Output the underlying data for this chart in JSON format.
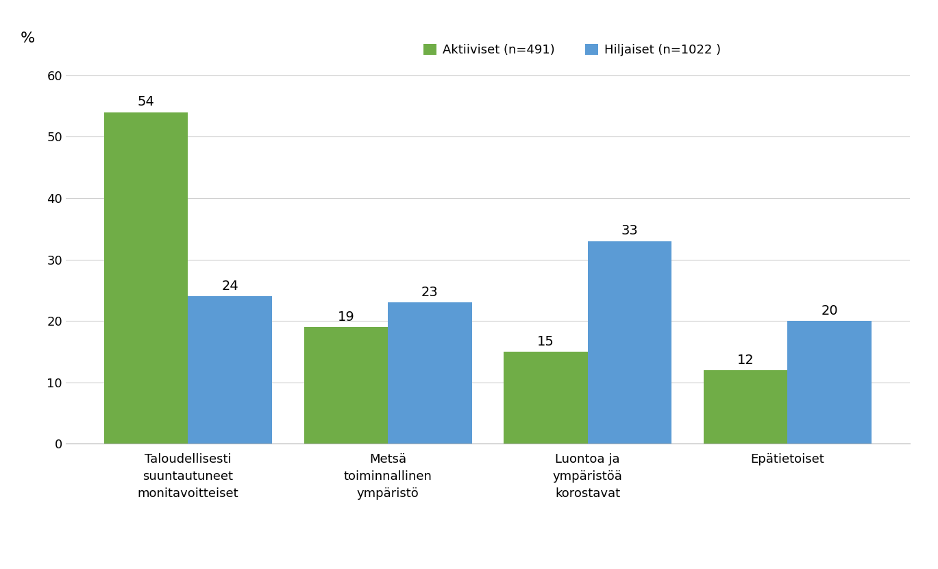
{
  "categories": [
    "Taloudellisesti\nsuuntautuneet\nmonitavoitteiset",
    "Metsä\ntoiminnallinen\nympäristö",
    "Luontoa ja\nympäristöä\nkorostavat",
    "Epätietoiset"
  ],
  "aktiiviset_values": [
    54,
    19,
    15,
    12
  ],
  "hiljaiset_values": [
    24,
    23,
    33,
    20
  ],
  "aktiiviset_color": "#70ad47",
  "hiljaiset_color": "#5b9bd5",
  "aktiiviset_label": "Aktiiviset (n=491)",
  "hiljaiset_label": "Hiljaiset (n=1022 )",
  "ylabel": "%",
  "ylim": [
    0,
    63
  ],
  "yticks": [
    0,
    10,
    20,
    30,
    40,
    50,
    60
  ],
  "bar_width": 0.42,
  "background_color": "#ffffff",
  "grid_color": "#d0d0d0",
  "label_fontsize": 14,
  "tick_fontsize": 13,
  "legend_fontsize": 13,
  "value_fontsize": 14
}
